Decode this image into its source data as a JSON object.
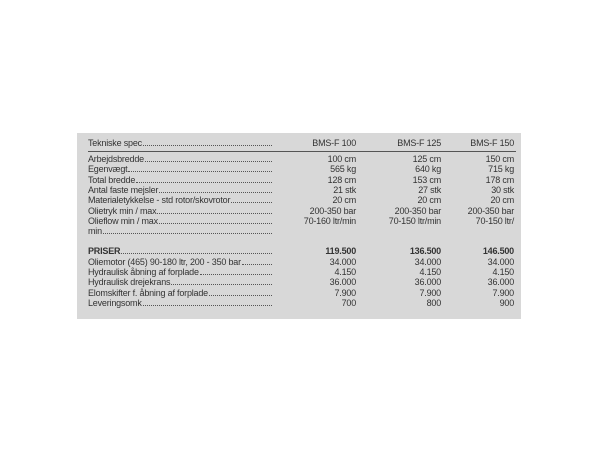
{
  "table": {
    "header": {
      "label": "Tekniske spec",
      "columns": [
        "BMS-F 100",
        "BMS-F 125",
        "BMS-F 150"
      ]
    },
    "spec_rows": [
      {
        "label": "Arbejdsbredde",
        "values": [
          "100 cm",
          "125 cm",
          "150 cm"
        ]
      },
      {
        "label": "Egenvægt",
        "values": [
          "565 kg",
          "640 kg",
          "715 kg"
        ]
      },
      {
        "label": "Total bredde",
        "values": [
          "128 cm",
          "153 cm",
          "178 cm"
        ]
      },
      {
        "label": "Antal faste mejsler",
        "values": [
          "21 stk",
          "27 stk",
          "30 stk"
        ]
      },
      {
        "label": "Materialetykkelse - std rotor/skovrotor",
        "values": [
          "20 cm",
          "20 cm",
          "20 cm"
        ]
      },
      {
        "label": "Olietryk min / max",
        "values": [
          "200-350 bar",
          "200-350 bar",
          "200-350 bar"
        ]
      },
      {
        "label": "Olieflow min / max",
        "values": [
          "70-160 ltr/min",
          "70-150 ltr/min",
          "70-150 ltr/"
        ]
      },
      {
        "label": "min"
      }
    ],
    "prices": {
      "label": "PRISER",
      "values": [
        "119.500",
        "136.500",
        "146.500"
      ],
      "rows": [
        {
          "label": "Oliemotor (465)  90-180 ltr,  200 - 350 bar",
          "values": [
            "34.000",
            "34.000",
            "34.000"
          ]
        },
        {
          "label": "Hydraulisk åbning af forplade",
          "values": [
            "4.150",
            "4.150",
            "4.150"
          ]
        },
        {
          "label": "Hydraulisk drejekrans",
          "values": [
            "36.000",
            "36.000",
            "36.000"
          ]
        },
        {
          "label": "Elomskifter f. åbning af forplade",
          "values": [
            "7.900",
            "7.900",
            "7.900"
          ]
        },
        {
          "label": "Leveringsomk",
          "values": [
            "700",
            "800",
            "900"
          ]
        }
      ]
    }
  }
}
